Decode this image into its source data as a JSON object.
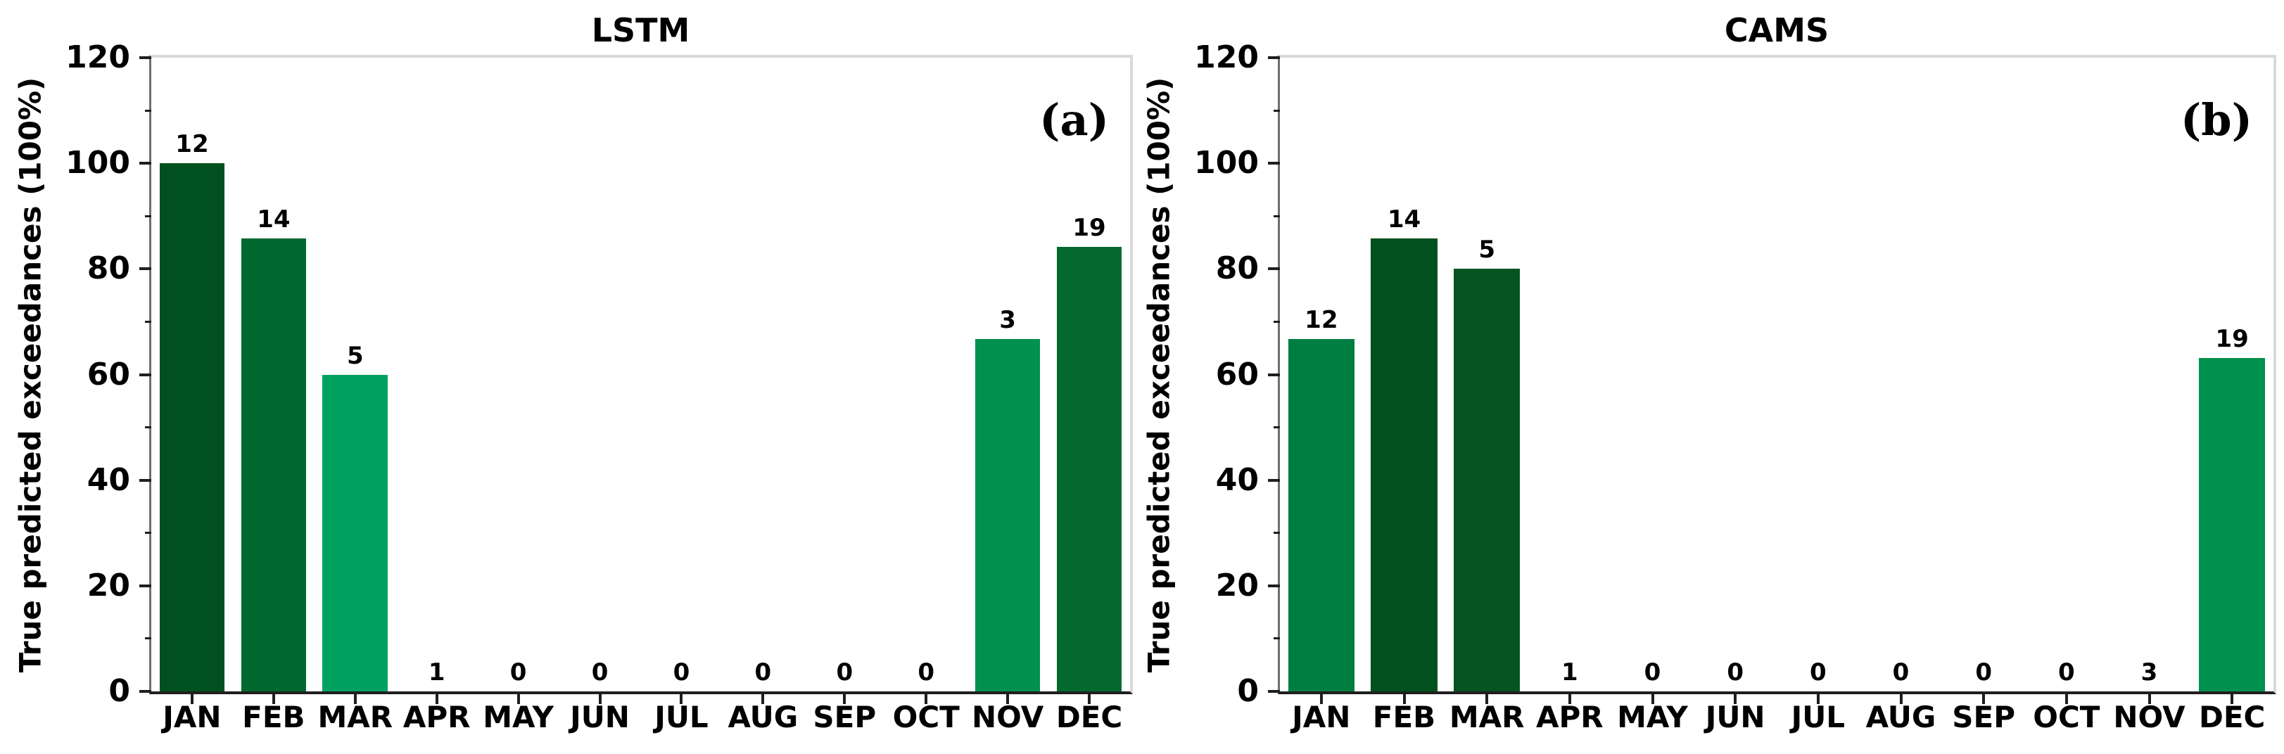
{
  "figure": {
    "background": "#ffffff",
    "bar_border": "none"
  },
  "chart_data": [
    {
      "type": "bar",
      "title": "LSTM",
      "corner_label": "(a)",
      "ylabel": "True predicted exceedances (100%)",
      "ylim": [
        0,
        120
      ],
      "yticks": [
        0,
        20,
        40,
        60,
        80,
        100,
        120
      ],
      "yticks_minor": [
        10,
        30,
        50,
        70,
        90,
        110
      ],
      "grid": "off",
      "legend": "none",
      "categories": [
        "JAN",
        "FEB",
        "MAR",
        "APR",
        "MAY",
        "JUN",
        "JUL",
        "AUG",
        "SEP",
        "OCT",
        "NOV",
        "DEC"
      ],
      "values": [
        100,
        85.71,
        60,
        0,
        0,
        0,
        0,
        0,
        0,
        0,
        66.67,
        84.21
      ],
      "bar_labels": [
        "12",
        "14",
        "5",
        "1",
        "0",
        "0",
        "0",
        "0",
        "0",
        "0",
        "3",
        "19"
      ],
      "bar_colors": [
        "#015020",
        "#01682F",
        "#00A261",
        null,
        null,
        null,
        null,
        null,
        null,
        null,
        "#00904F",
        "#03692E"
      ]
    },
    {
      "type": "bar",
      "title": "CAMS",
      "corner_label": "(b)",
      "ylabel": "True predicted exceedances (100%)",
      "ylim": [
        0,
        120
      ],
      "yticks": [
        0,
        20,
        40,
        60,
        80,
        100,
        120
      ],
      "yticks_minor": [
        10,
        30,
        50,
        70,
        90,
        110
      ],
      "grid": "off",
      "legend": "none",
      "categories": [
        "JAN",
        "FEB",
        "MAR",
        "APR",
        "MAY",
        "JUN",
        "JUL",
        "AUG",
        "SEP",
        "OCT",
        "NOV",
        "DEC"
      ],
      "values": [
        66.67,
        85.71,
        80,
        0,
        0,
        0,
        0,
        0,
        0,
        0,
        0,
        63.16
      ],
      "bar_labels": [
        "12",
        "14",
        "5",
        "1",
        "0",
        "0",
        "0",
        "0",
        "0",
        "0",
        "3",
        "19"
      ],
      "bar_colors": [
        "#007E41",
        "#02501E",
        "#06541F",
        null,
        null,
        null,
        null,
        null,
        null,
        null,
        null,
        "#00914E"
      ]
    }
  ]
}
